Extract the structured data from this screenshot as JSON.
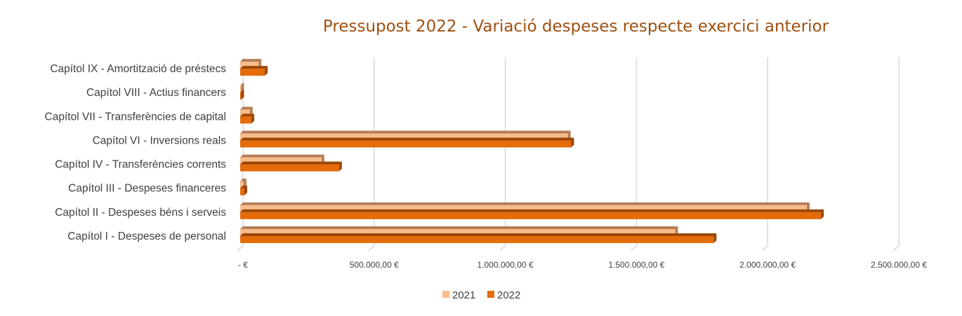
{
  "chart_data": {
    "type": "bar",
    "orientation": "horizontal",
    "title": "Pressupost 2022 - Variació despeses respecte exercici anterior",
    "categories": [
      "Capítol I - Despeses de personal",
      "Capítol II - Despeses béns i serveis",
      "Capítol III - Despeses financeres",
      "Capítol IV - Transferències corrents",
      "Capítol VI - Inversions reals",
      "Capítol VII - Transferències de capital",
      "Capítol VIII - Actius financers",
      "Capítol IX - Amortització de préstecs"
    ],
    "series": [
      {
        "name": "2021",
        "color": "#f8bc8c",
        "values": [
          1658000,
          2160000,
          13000,
          310000,
          1249000,
          37000,
          2000,
          70000
        ]
      },
      {
        "name": "2022",
        "color": "#e46c0a",
        "values": [
          1805000,
          2214000,
          16000,
          377000,
          1262000,
          43000,
          2000,
          94000
        ]
      }
    ],
    "xlim": [
      0,
      2500000
    ],
    "xticks": [
      0,
      500000,
      1000000,
      1500000,
      2000000,
      2500000
    ],
    "xtick_labels": [
      "-  €",
      "500.000,00 €",
      "1.000.000,00 €",
      "1.500.000,00 €",
      "2.000.000,00 €",
      "2.500.000,00 €"
    ],
    "grid": true,
    "legend": "bottom",
    "xlabel": "",
    "ylabel": ""
  }
}
